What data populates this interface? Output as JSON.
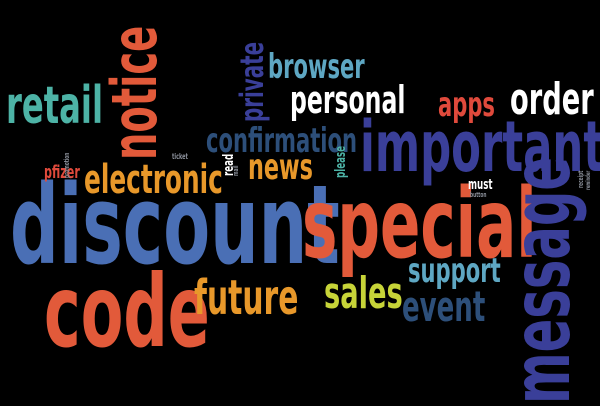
{
  "colors": {
    "background": "#000000",
    "blue": "#4a6fb5",
    "indigo": "#3a3f99",
    "navy": "#2d4f7a",
    "orange": "#e25a3a",
    "gold": "#e8982a",
    "yellowgreen": "#c7d438",
    "teal": "#4db3a6",
    "lightteal": "#5ea7c3",
    "white": "#ffffff",
    "red": "#e04a3c",
    "tinygray": "#8a8f99"
  },
  "words": [
    {
      "text": "discount",
      "color": "#4a6fb5"
    },
    {
      "text": "special",
      "color": "#e25a3a"
    },
    {
      "text": "code",
      "color": "#e25a3a"
    },
    {
      "text": "message",
      "color": "#3a3f99"
    },
    {
      "text": "important",
      "color": "#3a3f99"
    },
    {
      "text": "notice",
      "color": "#e25a3a"
    },
    {
      "text": "retail",
      "color": "#4db3a6"
    },
    {
      "text": "order",
      "color": "#ffffff"
    },
    {
      "text": "personal",
      "color": "#ffffff"
    },
    {
      "text": "browser",
      "color": "#5ea7c3"
    },
    {
      "text": "private",
      "color": "#3a3f99"
    },
    {
      "text": "apps",
      "color": "#e04a3c"
    },
    {
      "text": "confirmation",
      "color": "#2d4f7a"
    },
    {
      "text": "news",
      "color": "#e8982a"
    },
    {
      "text": "electronic",
      "color": "#e8982a"
    },
    {
      "text": "future",
      "color": "#e8982a"
    },
    {
      "text": "sales",
      "color": "#c7d438"
    },
    {
      "text": "support",
      "color": "#5ea7c3"
    },
    {
      "text": "event",
      "color": "#2d4f7a"
    },
    {
      "text": "pfizer",
      "color": "#e04a3c"
    },
    {
      "text": "read",
      "color": "#ffffff"
    },
    {
      "text": "please",
      "color": "#4db3a6"
    },
    {
      "text": "must",
      "color": "#ffffff"
    },
    {
      "text": "ticket",
      "color": "#8a8f99"
    },
    {
      "text": "promotion",
      "color": "#8a8f99"
    },
    {
      "text": "mail",
      "color": "#8a8f99"
    },
    {
      "text": "receipt",
      "color": "#8a8f99"
    },
    {
      "text": "reminder",
      "color": "#8a8f99"
    },
    {
      "text": "button",
      "color": "#8a8f99"
    }
  ]
}
